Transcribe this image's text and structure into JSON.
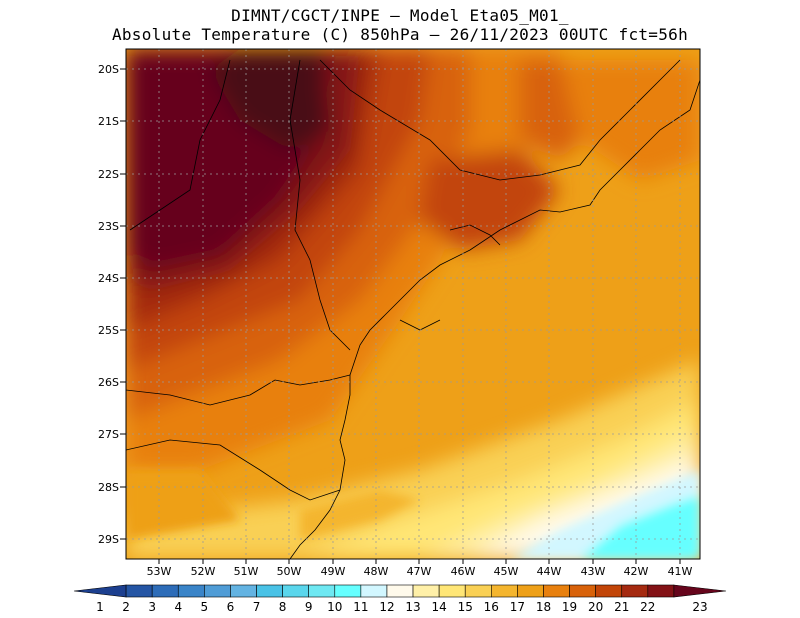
{
  "title_line1": "DIMNT/CGCT/INPE –  Model Eta05_M01_",
  "title_line2": "Absolute Temperature (C) 850hPa –  26/11/2023 00UTC fct=56h",
  "map": {
    "lat_labels": [
      "20S",
      "21S",
      "22S",
      "23S",
      "24S",
      "25S",
      "26S",
      "27S",
      "28S",
      "29S"
    ],
    "lon_labels": [
      "53W",
      "52W",
      "51W",
      "50W",
      "49W",
      "48W",
      "47W",
      "46W",
      "45W",
      "44W",
      "43W",
      "42W",
      "41W"
    ],
    "grid": "dotted"
  },
  "colorbar": {
    "labels": [
      "1",
      "2",
      "3",
      "4",
      "5",
      "6",
      "7",
      "8",
      "9",
      "10",
      "11",
      "12",
      "13",
      "14",
      "15",
      "16",
      "17",
      "18",
      "19",
      "20",
      "21",
      "22",
      "23"
    ],
    "colors": [
      "#1c3f8f",
      "#2455a4",
      "#2d6cb8",
      "#3a84c8",
      "#4f9cd6",
      "#63b3e2",
      "#49c2e6",
      "#5ad6ec",
      "#6ee8f2",
      "#66ffff",
      "#d2f7ff",
      "#fffaeb",
      "#fff0a8",
      "#ffe676",
      "#f9d054",
      "#f4b52e",
      "#eea018",
      "#e8800e",
      "#d8620a",
      "#c24508",
      "#a52a10",
      "#831216",
      "#66051c"
    ]
  }
}
